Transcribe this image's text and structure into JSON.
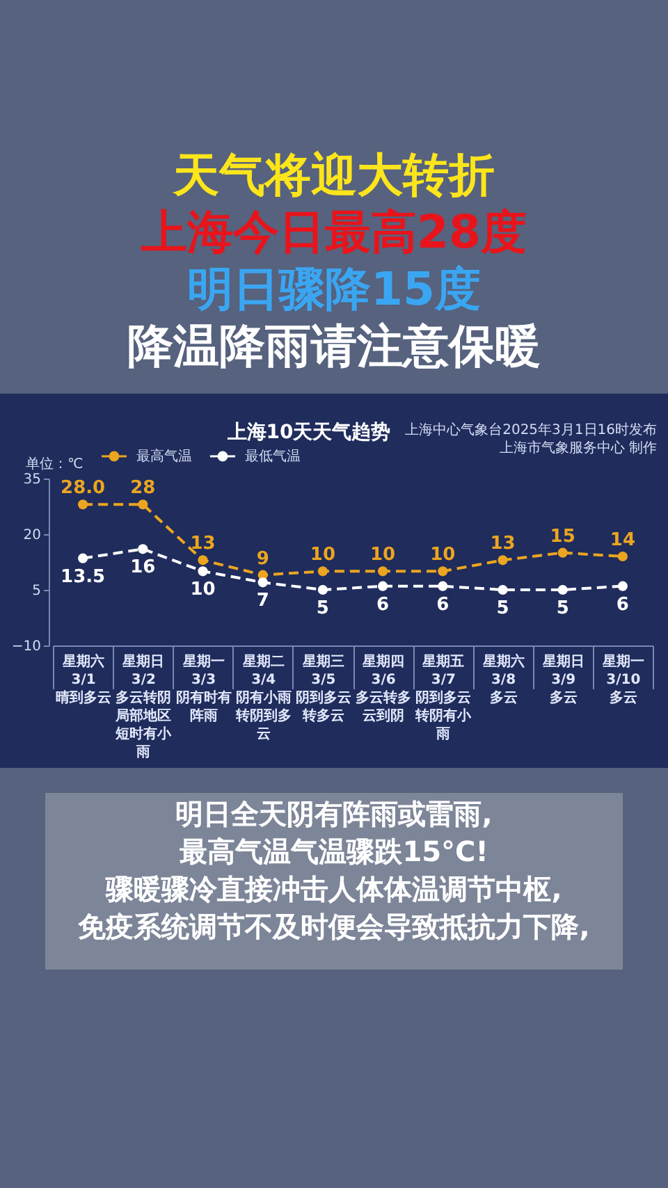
{
  "chart_data": {
    "type": "line",
    "title": "上海10天天气趋势",
    "ylabel": "单位：℃",
    "categories": [
      "星期六\n3/1\n晴到多云",
      "星期日\n3/2\n多云转阴局部地区短时有小雨",
      "星期一\n3/3\n阴有时有阵雨",
      "星期二\n3/4\n阴有小雨转阴到多云",
      "星期三\n3/5\n阴到多云转多云",
      "星期四\n3/6\n多云转多云到阴",
      "星期五\n3/7\n阴到多云转阴有小雨",
      "星期六\n3/8\n多云",
      "星期日\n3/9\n多云",
      "星期一\n3/10\n多云"
    ],
    "series": [
      {
        "name": "最高气温",
        "color": "#eba520",
        "values": [
          28,
          28,
          13,
          9,
          10,
          10,
          10,
          13,
          15,
          14
        ],
        "value_labels": [
          "28.0",
          "28",
          "13",
          "9",
          "10",
          "10",
          "10",
          "13",
          "15",
          "14"
        ]
      },
      {
        "name": "最低气温",
        "color": "#ffffff",
        "values": [
          13.5,
          16,
          10,
          7,
          5,
          6,
          6,
          5,
          5,
          6
        ],
        "value_labels": [
          "13.5",
          "16",
          "10",
          "7",
          "5",
          "6",
          "6",
          "5",
          "5",
          "6"
        ]
      }
    ],
    "ylim": [
      -10,
      35
    ],
    "yticks": [
      -10,
      5,
      20,
      35
    ],
    "legend": "top left",
    "marker": "circle",
    "line_style": "dashed",
    "annotations": [
      "天气将迎大转折",
      "上海今日最高28度",
      "明日骤降15度",
      "降温降雨请注意保暖",
      "上海中心气象台2025年3月1日16时发布",
      "上海市气象服务中心 制作",
      "明日全天阴有阵雨或雷雨,",
      "最高气温气温骤跌15°C!",
      "骤暖骤冷直接冲击人体体温调节中枢,",
      "免疫系统调节不及时便会导致抵抗力下降,"
    ]
  }
}
